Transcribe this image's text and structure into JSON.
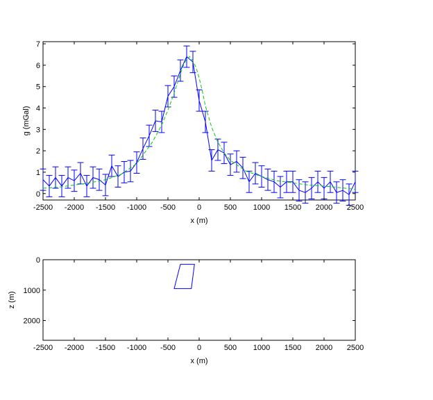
{
  "chart_data": [
    {
      "type": "line",
      "xlabel": "x (m)",
      "ylabel": "g (mGal)",
      "xlim": [
        -2500,
        2500
      ],
      "ylim": [
        -0.3,
        7.1
      ],
      "xticks": [
        -2500,
        -2000,
        -1500,
        -1000,
        -500,
        0,
        500,
        1000,
        1500,
        2000,
        2500
      ],
      "yticks": [
        0,
        1,
        2,
        3,
        4,
        5,
        6,
        7
      ],
      "grid": false,
      "series": [
        {
          "style": "solid-with-errorbars",
          "color": "#0000ff",
          "error": 0.5,
          "x": [
            -2500,
            -2400,
            -2300,
            -2200,
            -2100,
            -2000,
            -1900,
            -1800,
            -1700,
            -1600,
            -1500,
            -1400,
            -1300,
            -1200,
            -1100,
            -1000,
            -900,
            -800,
            -700,
            -600,
            -500,
            -400,
            -300,
            -200,
            -100,
            0,
            100,
            200,
            300,
            400,
            500,
            600,
            700,
            800,
            900,
            1000,
            1100,
            1200,
            1300,
            1400,
            1500,
            1600,
            1700,
            1800,
            1900,
            2000,
            2100,
            2200,
            2300,
            2400,
            2500
          ],
          "y": [
            0.65,
            0.35,
            0.75,
            0.35,
            0.75,
            0.6,
            0.95,
            0.35,
            0.75,
            0.65,
            0.4,
            1.3,
            0.8,
            1.0,
            1.05,
            1.45,
            2.1,
            2.7,
            3.4,
            3.35,
            4.55,
            5.0,
            5.75,
            6.4,
            6.15,
            4.35,
            3.35,
            1.55,
            2.05,
            1.9,
            1.35,
            1.5,
            1.2,
            0.55,
            0.95,
            0.8,
            0.65,
            0.55,
            0.3,
            0.55,
            0.55,
            0.15,
            0.05,
            0.25,
            0.55,
            0.25,
            0.55,
            0.05,
            0.15,
            -0.05,
            0.55
          ]
        },
        {
          "style": "dashed",
          "color": "#00cc00",
          "x": [
            -2500,
            -2250,
            -2000,
            -1750,
            -1500,
            -1250,
            -1000,
            -750,
            -600,
            -500,
            -400,
            -300,
            -250,
            -200,
            -150,
            -100,
            -50,
            0,
            50,
            100,
            200,
            300,
            400,
            500,
            750,
            1000,
            1250,
            1500,
            1750,
            2000,
            2250,
            2500
          ],
          "y": [
            0.25,
            0.3,
            0.4,
            0.5,
            0.65,
            0.9,
            1.4,
            2.4,
            3.2,
            3.9,
            4.7,
            5.6,
            6.0,
            6.3,
            6.4,
            6.2,
            5.9,
            5.4,
            4.8,
            4.1,
            3.1,
            2.4,
            1.9,
            1.55,
            1.05,
            0.8,
            0.6,
            0.5,
            0.4,
            0.35,
            0.28,
            0.2
          ]
        }
      ]
    },
    {
      "type": "line",
      "xlabel": "x (m)",
      "ylabel": "z (m)",
      "xlim": [
        -2500,
        2500
      ],
      "ylim": [
        2650,
        0
      ],
      "y_reversed": true,
      "xticks": [
        -2500,
        -2000,
        -1500,
        -1000,
        -500,
        0,
        500,
        1000,
        1500,
        2000,
        2500
      ],
      "yticks": [
        0,
        1000,
        2000
      ],
      "grid": false,
      "series": [
        {
          "style": "closed-polygon",
          "color": "#0000ff",
          "x": [
            -300,
            -75,
            -125,
            -400,
            -300
          ],
          "y": [
            150,
            150,
            950,
            950,
            150
          ]
        }
      ]
    }
  ]
}
